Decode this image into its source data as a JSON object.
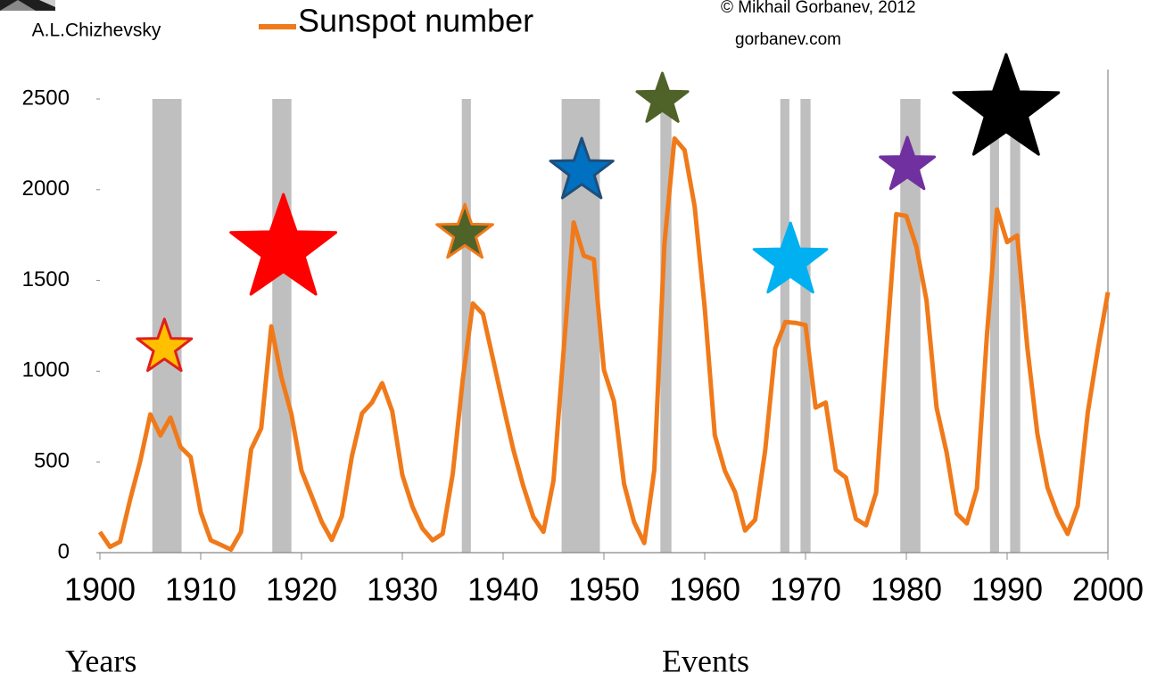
{
  "chart_data": {
    "type": "line",
    "legend": "Sunspot number",
    "caption": "A.L.Chizhevsky",
    "credit": "© Mikhail Gorbanev, 2012",
    "website": "gorbanev.com",
    "x_label": "Years",
    "event_label": "Events",
    "xlim": [
      1900,
      2000
    ],
    "ylim": [
      0,
      2500
    ],
    "xticks": [
      1900,
      1910,
      1920,
      1930,
      1940,
      1950,
      1960,
      1970,
      1980,
      1990,
      2000
    ],
    "yticks": [
      0,
      500,
      1000,
      1500,
      2000,
      2500
    ],
    "x": [
      1900,
      1901,
      1902,
      1903,
      1904,
      1905,
      1906,
      1907,
      1908,
      1909,
      1910,
      1911,
      1912,
      1913,
      1914,
      1915,
      1916,
      1917,
      1918,
      1919,
      1920,
      1921,
      1922,
      1923,
      1924,
      1925,
      1926,
      1927,
      1928,
      1929,
      1930,
      1931,
      1932,
      1933,
      1934,
      1935,
      1936,
      1937,
      1938,
      1939,
      1940,
      1941,
      1942,
      1943,
      1944,
      1945,
      1946,
      1947,
      1948,
      1949,
      1950,
      1951,
      1952,
      1953,
      1954,
      1955,
      1956,
      1957,
      1958,
      1959,
      1960,
      1961,
      1962,
      1963,
      1964,
      1965,
      1966,
      1967,
      1968,
      1969,
      1970,
      1971,
      1972,
      1973,
      1974,
      1975,
      1976,
      1977,
      1978,
      1979,
      1980,
      1981,
      1982,
      1983,
      1984,
      1985,
      1986,
      1987,
      1988,
      1989,
      1990,
      1991,
      1992,
      1993,
      1994,
      1995,
      1996,
      1997,
      1998,
      1999,
      2000
    ],
    "series": [
      {
        "name": "Sunspot number",
        "color": "#f07a1a",
        "values": [
          114,
          32,
          60,
          293,
          504,
          762,
          646,
          744,
          582,
          527,
          223,
          68,
          43,
          17,
          115,
          569,
          685,
          1247,
          967,
          763,
          451,
          313,
          170,
          70,
          200,
          532,
          767,
          828,
          934,
          779,
          428,
          254,
          133,
          68,
          104,
          433,
          956,
          1373,
          1315,
          1066,
          814,
          570,
          367,
          196,
          115,
          398,
          1111,
          1819,
          1636,
          1616,
          1007,
          833,
          378,
          167,
          53,
          456,
          1700,
          2282,
          2218,
          1908,
          1348,
          647,
          451,
          335,
          122,
          181,
          564,
          1126,
          1271,
          1266,
          1254,
          799,
          827,
          456,
          414,
          186,
          151,
          330,
          1110,
          1865,
          1855,
          1685,
          1391,
          799,
          551,
          215,
          161,
          353,
          1202,
          1891,
          1711,
          1748,
          1132,
          655,
          359,
          210,
          103,
          258,
          772,
          1120,
          1435
        ]
      }
    ],
    "event_color": "#bfbfbf",
    "events": [
      [
        1905.2,
        1908.1
      ],
      [
        1917.1,
        1919.0
      ],
      [
        1935.9,
        1936.8
      ],
      [
        1945.8,
        1949.6
      ],
      [
        1955.6,
        1956.7
      ],
      [
        1967.5,
        1968.4
      ],
      [
        1969.5,
        1970.5
      ],
      [
        1979.4,
        1981.4
      ],
      [
        1988.3,
        1989.2
      ],
      [
        1990.3,
        1991.3
      ]
    ],
    "stars": [
      {
        "x": 1906.4,
        "y": 1130,
        "size": 32,
        "color": "#ffc000",
        "edge": "#e0201b"
      },
      {
        "x": 1918.2,
        "y": 1670,
        "size": 62,
        "color": "#ff0000",
        "edge": "#ff0000"
      },
      {
        "x": 1936.2,
        "y": 1758,
        "size": 33,
        "color": "#4f6228",
        "edge": "#f07a1a"
      },
      {
        "x": 1947.8,
        "y": 2102,
        "size": 37,
        "color": "#0070c0",
        "edge": "#1f4e79"
      },
      {
        "x": 1955.8,
        "y": 2495,
        "size": 30,
        "color": "#4f6228",
        "edge": "#4f6228"
      },
      {
        "x": 1968.5,
        "y": 1606,
        "size": 43,
        "color": "#00b0f0",
        "edge": "#00b0f0"
      },
      {
        "x": 1980.1,
        "y": 2132,
        "size": 32,
        "color": "#7030a0",
        "edge": "#7030a0"
      },
      {
        "x": 1989.9,
        "y": 2441,
        "size": 62,
        "color": "#000000",
        "edge": "#000000"
      }
    ]
  }
}
